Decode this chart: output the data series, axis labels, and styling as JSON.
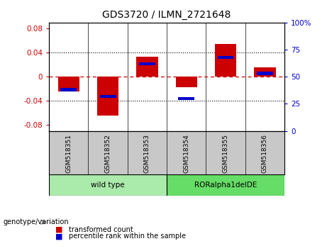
{
  "title": "GDS3720 / ILMN_2721648",
  "samples": [
    "GSM518351",
    "GSM518352",
    "GSM518353",
    "GSM518354",
    "GSM518355",
    "GSM518356"
  ],
  "red_values": [
    -0.025,
    -0.065,
    0.033,
    -0.018,
    0.055,
    0.015
  ],
  "blue_values_pct": [
    38,
    32,
    62,
    30,
    68,
    53
  ],
  "ylim_left": [
    -0.09,
    0.09
  ],
  "ylim_right": [
    0,
    100
  ],
  "yticks_left": [
    -0.08,
    -0.04,
    0,
    0.04,
    0.08
  ],
  "yticks_right": [
    0,
    25,
    50,
    75,
    100
  ],
  "bar_color_red": "#cc0000",
  "bar_color_blue": "#0000cc",
  "zero_line_color": "#cc0000",
  "grid_color": "#000000",
  "bg_color": "#ffffff",
  "plot_bg_color": "#ffffff",
  "tick_color_left": "#cc0000",
  "tick_color_right": "#0000cc",
  "legend_red_label": "transformed count",
  "legend_blue_label": "percentile rank within the sample",
  "genotype_label": "genotype/variation",
  "bar_width": 0.55,
  "sample_panel_color": "#c8c8c8",
  "group_defs": [
    {
      "label": "wild type",
      "start": 0,
      "end": 2,
      "color": "#aaeaaa"
    },
    {
      "label": "RORalpha1delDE",
      "start": 3,
      "end": 5,
      "color": "#66dd66"
    }
  ]
}
